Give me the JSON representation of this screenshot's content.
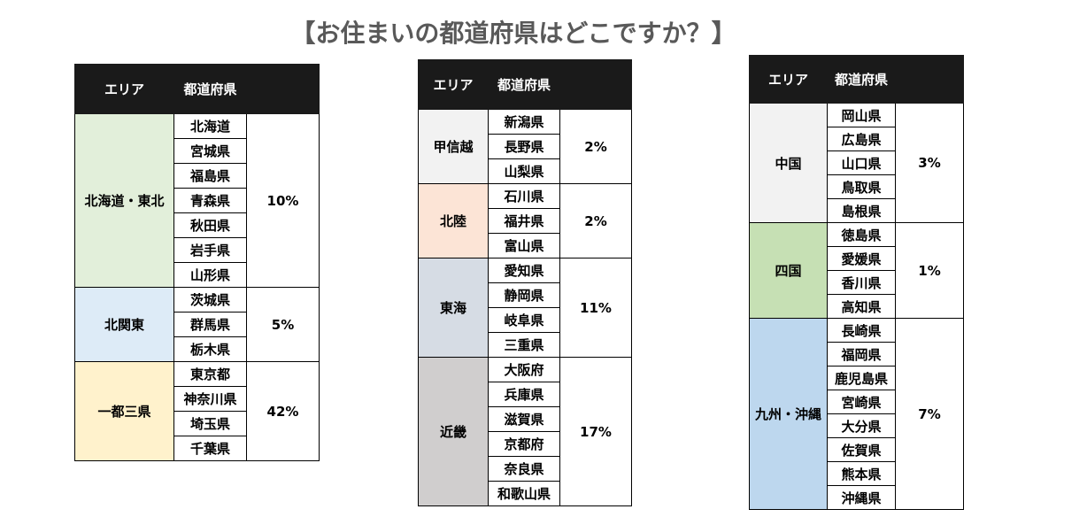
{
  "title": "【お住まいの都道府県はどこですか？】",
  "headers": {
    "area": "エリア",
    "prefecture": "都道府県",
    "percent": ""
  },
  "colors": {
    "header_bg": "#1a1a1a",
    "hokkaido_tohoku": "#e2efda",
    "kita_kanto": "#ddebf7",
    "ichito_sanken": "#fff2cc",
    "koshinetsu": "#f2f2f2",
    "hokuriku": "#fce4d6",
    "tokai": "#d6dce4",
    "kinki": "#d0cece",
    "chugoku": "#f2f2f2",
    "shikoku": "#c6e0b4",
    "kyushu_okinawa": "#bdd7ee"
  },
  "tables": [
    {
      "regions": [
        {
          "area": "北海道・東北",
          "percent": "10%",
          "prefectures": [
            "北海道",
            "宮城県",
            "福島県",
            "青森県",
            "秋田県",
            "岩手県",
            "山形県"
          ]
        },
        {
          "area": "北関東",
          "percent": "5%",
          "prefectures": [
            "茨城県",
            "群馬県",
            "栃木県"
          ]
        },
        {
          "area": "一都三県",
          "percent": "42%",
          "prefectures": [
            "東京都",
            "神奈川県",
            "埼玉県",
            "千葉県"
          ]
        }
      ]
    },
    {
      "regions": [
        {
          "area": "甲信越",
          "percent": "2%",
          "prefectures": [
            "新潟県",
            "長野県",
            "山梨県"
          ]
        },
        {
          "area": "北陸",
          "percent": "2%",
          "prefectures": [
            "石川県",
            "福井県",
            "富山県"
          ]
        },
        {
          "area": "東海",
          "percent": "11%",
          "prefectures": [
            "愛知県",
            "静岡県",
            "岐阜県",
            "三重県"
          ]
        },
        {
          "area": "近畿",
          "percent": "17%",
          "prefectures": [
            "大阪府",
            "兵庫県",
            "滋賀県",
            "京都府",
            "奈良県",
            "和歌山県"
          ]
        }
      ]
    },
    {
      "regions": [
        {
          "area": "中国",
          "percent": "3%",
          "prefectures": [
            "岡山県",
            "広島県",
            "山口県",
            "鳥取県",
            "島根県"
          ]
        },
        {
          "area": "四国",
          "percent": "1%",
          "prefectures": [
            "徳島県",
            "愛媛県",
            "香川県",
            "高知県"
          ]
        },
        {
          "area": "九州・沖縄",
          "percent": "7%",
          "prefectures": [
            "長崎県",
            "福岡県",
            "鹿児島県",
            "宮崎県",
            "大分県",
            "佐賀県",
            "熊本県",
            "沖縄県"
          ]
        }
      ]
    }
  ]
}
